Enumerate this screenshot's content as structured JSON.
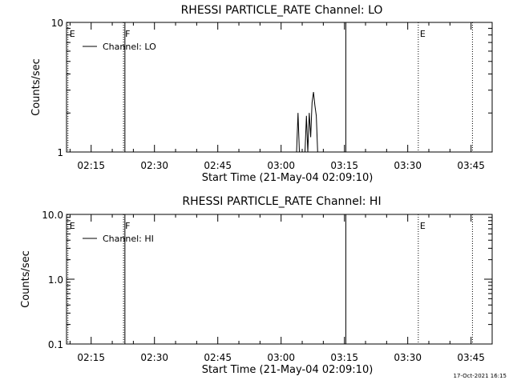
{
  "footer": {
    "timestamp": "17-Oct-2021 16:15"
  },
  "colors": {
    "background": "#ffffff",
    "foreground": "#000000"
  },
  "chart_data": [
    {
      "type": "line",
      "title": "RHESSI PARTICLE_RATE Channel: LO",
      "xlabel": "Start Time (21-May-04 02:09:10)",
      "ylabel": "Counts/sec",
      "y_scale": "log",
      "ylim": [
        1,
        10
      ],
      "y_ticks": [
        {
          "value": 1,
          "label": "1"
        },
        {
          "value": 10,
          "label": "10"
        }
      ],
      "xlim": [
        "02:09:10",
        "03:50:00"
      ],
      "x_ticks": [
        "02:15",
        "02:30",
        "02:45",
        "03:00",
        "03:15",
        "03:30",
        "03:45"
      ],
      "legend": {
        "position": "top-left",
        "entries": [
          "Channel: LO"
        ]
      },
      "series": [
        {
          "name": "Channel: LO",
          "points": [
            [
              "03:03:40",
              1
            ],
            [
              "03:04:00",
              2.0
            ],
            [
              "03:04:20",
              1
            ],
            [
              "03:05:40",
              1
            ],
            [
              "03:06:00",
              1.9
            ],
            [
              "03:06:20",
              1
            ],
            [
              "03:06:40",
              2.0
            ],
            [
              "03:07:00",
              1.3
            ],
            [
              "03:07:20",
              2.4
            ],
            [
              "03:07:40",
              2.9
            ],
            [
              "03:08:00",
              2.3
            ],
            [
              "03:08:20",
              1.9
            ],
            [
              "03:08:40",
              1
            ]
          ]
        }
      ],
      "markers": [
        {
          "time": "02:09:30",
          "label": "E",
          "style": "dotted"
        },
        {
          "time": "02:22:40",
          "label": "F",
          "style": "dotted"
        },
        {
          "time": "02:23:00",
          "label": "",
          "style": "solid"
        },
        {
          "time": "03:15:20",
          "label": "",
          "style": "solid"
        },
        {
          "time": "03:32:30",
          "label": "E",
          "style": "dotted"
        },
        {
          "time": "03:45:20",
          "label": "",
          "style": "dotted"
        }
      ]
    },
    {
      "type": "line",
      "title": "RHESSI PARTICLE_RATE Channel: HI",
      "xlabel": "Start Time (21-May-04 02:09:10)",
      "ylabel": "Counts/sec",
      "y_scale": "log",
      "ylim": [
        0.1,
        10
      ],
      "y_ticks": [
        {
          "value": 0.1,
          "label": "0.1"
        },
        {
          "value": 1,
          "label": "1.0"
        },
        {
          "value": 10,
          "label": "10.0"
        }
      ],
      "xlim": [
        "02:09:10",
        "03:50:00"
      ],
      "x_ticks": [
        "02:15",
        "02:30",
        "02:45",
        "03:00",
        "03:15",
        "03:30",
        "03:45"
      ],
      "legend": {
        "position": "top-left",
        "entries": [
          "Channel: HI"
        ]
      },
      "series": [
        {
          "name": "Channel: HI",
          "points": []
        }
      ],
      "markers": [
        {
          "time": "02:09:30",
          "label": "E",
          "style": "dotted"
        },
        {
          "time": "02:22:40",
          "label": "F",
          "style": "dotted"
        },
        {
          "time": "02:23:00",
          "label": "",
          "style": "solid"
        },
        {
          "time": "03:15:20",
          "label": "",
          "style": "solid"
        },
        {
          "time": "03:32:30",
          "label": "E",
          "style": "dotted"
        },
        {
          "time": "03:45:20",
          "label": "",
          "style": "dotted"
        }
      ]
    }
  ]
}
